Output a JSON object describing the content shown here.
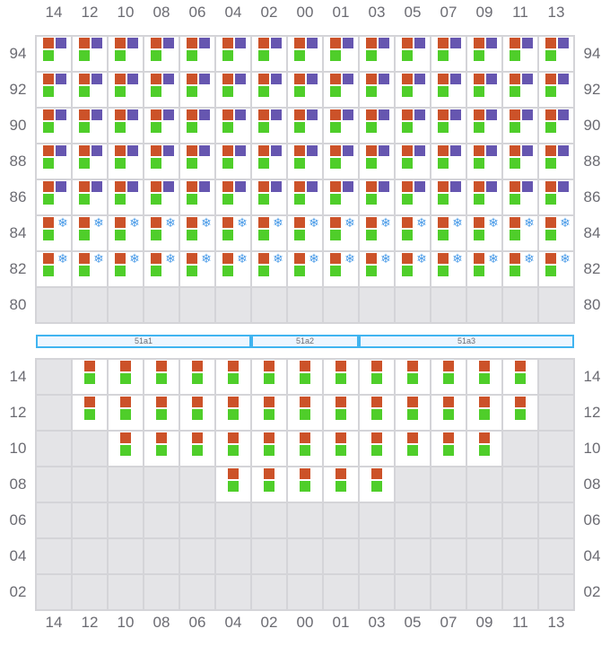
{
  "columns": [
    "14",
    "12",
    "10",
    "08",
    "06",
    "04",
    "02",
    "00",
    "01",
    "03",
    "05",
    "07",
    "09",
    "11",
    "13"
  ],
  "top": {
    "rows": [
      {
        "label": "94",
        "cells": "FFFFFFFFFFFFFFF"
      },
      {
        "label": "92",
        "cells": "FFFFFFFFFFFFFFF"
      },
      {
        "label": "90",
        "cells": "FFFFFFFFFFFFFFF"
      },
      {
        "label": "88",
        "cells": "FFFFFFFFFFFFFFF"
      },
      {
        "label": "86",
        "cells": "FFFFFFFFFFFFFFF"
      },
      {
        "label": "84",
        "cells": "RRRRRRRRRRRRRRR"
      },
      {
        "label": "82",
        "cells": "RRRRRRRRRRRRRRR"
      },
      {
        "label": "80",
        "cells": "..............."
      }
    ]
  },
  "bays": [
    {
      "label": "51a1",
      "span": 6
    },
    {
      "label": "51a2",
      "span": 3
    },
    {
      "label": "51a3",
      "span": 6
    }
  ],
  "bottom": {
    "rows": [
      {
        "label": "14",
        "cells": ".BBBBBBBBBBBBB."
      },
      {
        "label": "12",
        "cells": ".BBBBBBBBBBBBB."
      },
      {
        "label": "10",
        "cells": "..BBBBBBBBBBB.."
      },
      {
        "label": "08",
        "cells": ".....BBBBB....."
      },
      {
        "label": "06",
        "cells": "..............."
      },
      {
        "label": "04",
        "cells": "..............."
      },
      {
        "label": "02",
        "cells": "..............."
      }
    ]
  },
  "legend_codes": {
    "F": "container-with-hazard-and-weight",
    "R": "reefer-container",
    "B": "container",
    ".": "empty-slot"
  },
  "colors": {
    "orange": "#cc5229",
    "purple": "#6656b0",
    "green": "#4fce2a",
    "reefer": "#4a9be8",
    "bay_border": "#40b4f0"
  }
}
